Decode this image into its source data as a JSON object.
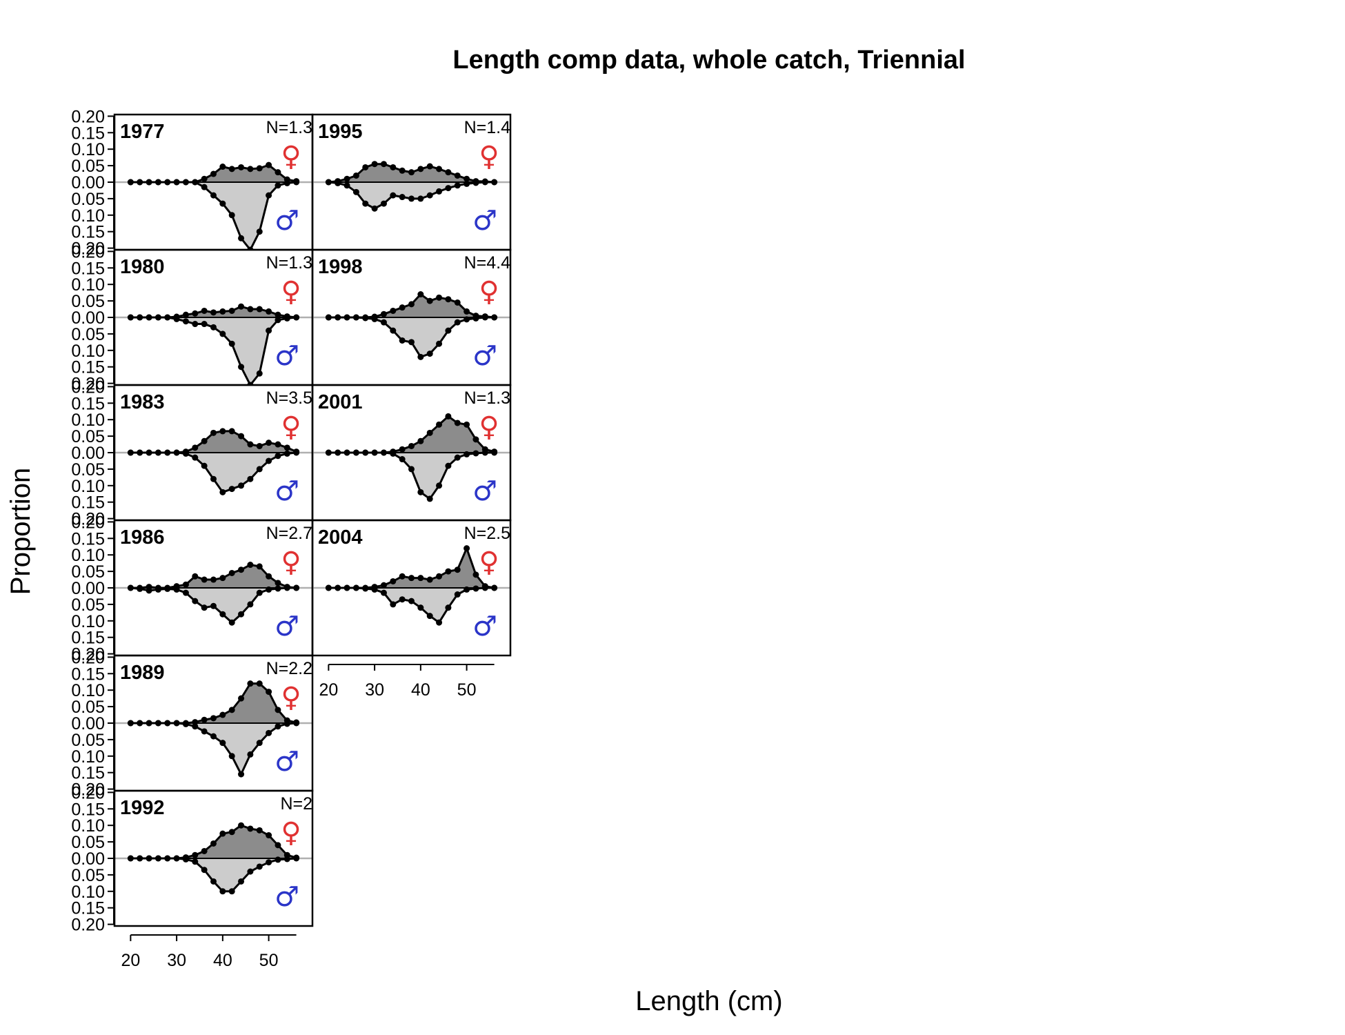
{
  "chart_data": {
    "type": "area",
    "title": "Length comp data, whole catch, Triennial",
    "xlabel": "Length (cm)",
    "ylabel": "Proportion",
    "xlim": [
      16.5,
      59.5
    ],
    "ylim": [
      -0.205,
      0.205
    ],
    "x_ticks": [
      20,
      30,
      40,
      50
    ],
    "y_tick_labels": [
      "0.20",
      "0.15",
      "0.10",
      "0.05",
      "0.00",
      "0.05",
      "0.10",
      "0.15",
      "0.20"
    ],
    "female_symbol": "♀",
    "male_symbol": "♂",
    "colors": {
      "female_fill": "#8c8c8c",
      "male_fill": "#cccccc",
      "line": "#000000",
      "female_symbol": "#e03131",
      "male_symbol": "#2b35c8",
      "zero_line": "#b0b0b0"
    },
    "x": [
      20,
      22,
      24,
      26,
      28,
      30,
      32,
      34,
      36,
      38,
      40,
      42,
      44,
      46,
      48,
      50,
      52,
      54,
      56
    ],
    "panels": [
      {
        "year": "1977",
        "n_label": "N=1.3",
        "col": 0,
        "row": 0,
        "female": [
          0,
          0,
          0,
          0,
          0,
          0,
          0,
          0,
          0.01,
          0.025,
          0.047,
          0.04,
          0.045,
          0.04,
          0.042,
          0.052,
          0.03,
          0.008,
          0.003
        ],
        "male": [
          0,
          0,
          0,
          0,
          0,
          0,
          0,
          0,
          0.015,
          0.04,
          0.065,
          0.1,
          0.17,
          0.205,
          0.15,
          0.04,
          0.01,
          0.003,
          0
        ]
      },
      {
        "year": "1980",
        "n_label": "N=1.3",
        "col": 0,
        "row": 1,
        "female": [
          0,
          0,
          0,
          0,
          0,
          0.002,
          0.008,
          0.012,
          0.02,
          0.015,
          0.018,
          0.02,
          0.033,
          0.025,
          0.025,
          0.018,
          0.008,
          0.003,
          0
        ],
        "male": [
          0,
          0,
          0,
          0,
          0,
          0.005,
          0.012,
          0.02,
          0.02,
          0.03,
          0.05,
          0.08,
          0.15,
          0.205,
          0.17,
          0.04,
          0.008,
          0.003,
          0
        ]
      },
      {
        "year": "1983",
        "n_label": "N=3.5",
        "col": 0,
        "row": 2,
        "female": [
          0,
          0,
          0,
          0,
          0,
          0,
          0.003,
          0.015,
          0.035,
          0.06,
          0.065,
          0.065,
          0.05,
          0.025,
          0.02,
          0.03,
          0.025,
          0.015,
          0.003
        ],
        "male": [
          0,
          0,
          0,
          0,
          0,
          0,
          0.003,
          0.015,
          0.04,
          0.08,
          0.12,
          0.11,
          0.1,
          0.08,
          0.05,
          0.025,
          0.01,
          0.003,
          0
        ]
      },
      {
        "year": "1986",
        "n_label": "N=2.7",
        "col": 0,
        "row": 3,
        "female": [
          0,
          0,
          0.003,
          0,
          0,
          0.005,
          0.01,
          0.035,
          0.025,
          0.025,
          0.03,
          0.045,
          0.055,
          0.07,
          0.065,
          0.035,
          0.015,
          0.003,
          0
        ],
        "male": [
          0,
          0.003,
          0.008,
          0.005,
          0.003,
          0.005,
          0.015,
          0.04,
          0.06,
          0.055,
          0.08,
          0.105,
          0.08,
          0.05,
          0.015,
          0.005,
          0.002,
          0,
          0
        ]
      },
      {
        "year": "1989",
        "n_label": "N=2.2",
        "col": 0,
        "row": 4,
        "female": [
          0,
          0,
          0,
          0,
          0,
          0,
          0,
          0.003,
          0.01,
          0.015,
          0.025,
          0.04,
          0.075,
          0.12,
          0.12,
          0.095,
          0.04,
          0.008,
          0.002
        ],
        "male": [
          0,
          0,
          0,
          0,
          0,
          0,
          0.003,
          0.01,
          0.025,
          0.04,
          0.06,
          0.1,
          0.155,
          0.095,
          0.06,
          0.03,
          0.01,
          0.002,
          0
        ]
      },
      {
        "year": "1992",
        "n_label": "N=2",
        "col": 0,
        "row": 5,
        "female": [
          0,
          0,
          0,
          0,
          0,
          0,
          0.003,
          0.01,
          0.022,
          0.045,
          0.075,
          0.08,
          0.1,
          0.09,
          0.085,
          0.07,
          0.04,
          0.01,
          0.002
        ],
        "male": [
          0,
          0,
          0,
          0,
          0,
          0,
          0.003,
          0.01,
          0.035,
          0.07,
          0.1,
          0.1,
          0.07,
          0.04,
          0.025,
          0.012,
          0.004,
          0.002,
          0
        ]
      },
      {
        "year": "1995",
        "n_label": "N=1.4",
        "col": 1,
        "row": 0,
        "female": [
          0,
          0.003,
          0.01,
          0.02,
          0.045,
          0.055,
          0.055,
          0.045,
          0.035,
          0.03,
          0.04,
          0.048,
          0.04,
          0.03,
          0.02,
          0.01,
          0.003,
          0.002,
          0
        ],
        "male": [
          0,
          0.003,
          0.01,
          0.03,
          0.065,
          0.08,
          0.065,
          0.04,
          0.045,
          0.05,
          0.05,
          0.04,
          0.028,
          0.018,
          0.01,
          0.005,
          0.002,
          0,
          0
        ]
      },
      {
        "year": "1998",
        "n_label": "N=4.4",
        "col": 1,
        "row": 1,
        "female": [
          0,
          0,
          0,
          0,
          0,
          0.002,
          0.01,
          0.02,
          0.03,
          0.04,
          0.07,
          0.05,
          0.06,
          0.055,
          0.045,
          0.018,
          0.005,
          0.003,
          0
        ],
        "male": [
          0,
          0,
          0,
          0,
          0.002,
          0.005,
          0.015,
          0.04,
          0.07,
          0.075,
          0.12,
          0.11,
          0.08,
          0.04,
          0.015,
          0.006,
          0.003,
          0,
          0
        ]
      },
      {
        "year": "2001",
        "n_label": "N=1.3",
        "col": 1,
        "row": 2,
        "female": [
          0,
          0,
          0,
          0,
          0,
          0,
          0,
          0.003,
          0.01,
          0.02,
          0.035,
          0.06,
          0.085,
          0.11,
          0.09,
          0.085,
          0.04,
          0.01,
          0.003
        ],
        "male": [
          0,
          0,
          0,
          0,
          0,
          0,
          0,
          0.003,
          0.02,
          0.05,
          0.12,
          0.14,
          0.1,
          0.04,
          0.015,
          0.005,
          0.002,
          0,
          0
        ]
      },
      {
        "year": "2004",
        "n_label": "N=2.5",
        "col": 1,
        "row": 3,
        "female": [
          0,
          0,
          0,
          0,
          0,
          0.003,
          0.008,
          0.02,
          0.035,
          0.03,
          0.03,
          0.025,
          0.035,
          0.05,
          0.055,
          0.12,
          0.04,
          0.005,
          0
        ],
        "male": [
          0,
          0,
          0,
          0,
          0.002,
          0.005,
          0.015,
          0.05,
          0.035,
          0.04,
          0.06,
          0.085,
          0.105,
          0.06,
          0.02,
          0.005,
          0.002,
          0,
          0
        ]
      }
    ]
  }
}
